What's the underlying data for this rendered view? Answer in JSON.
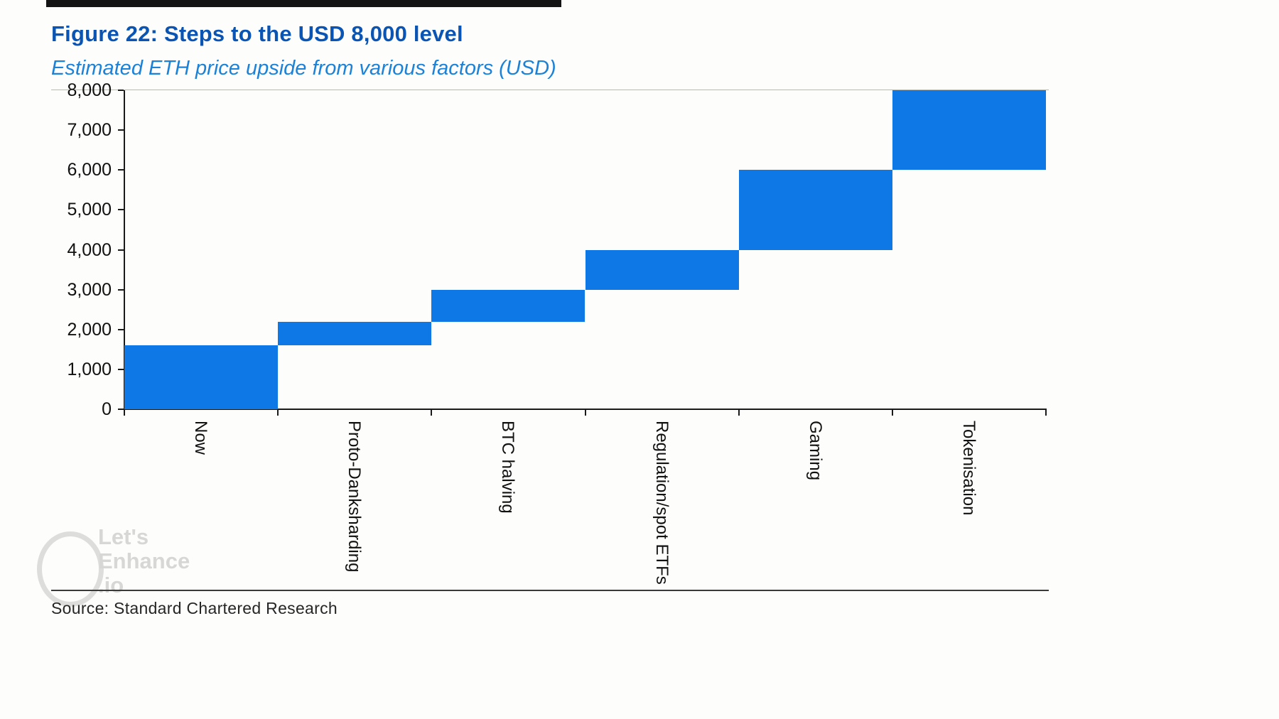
{
  "figure": {
    "title": "Figure 22: Steps to the USD 8,000 level",
    "subtitle": "Estimated ETH price upside from various factors (USD)",
    "source": "Source: Standard Chartered Research"
  },
  "watermark": {
    "lines": [
      "Let's",
      "Enhance",
      ".io"
    ]
  },
  "colors": {
    "bar": "#0e79e6",
    "title": "#0a55b4",
    "subtitle": "#1b82d8",
    "axis": "#1a1a1a",
    "watermark": "#d7d7d5"
  },
  "chart_data": {
    "type": "bar",
    "subtype": "waterfall",
    "title": "Steps to the USD 8,000 level",
    "subtitle": "Estimated ETH price upside from various factors (USD)",
    "categories": [
      "Now",
      "Proto-Danksharding",
      "BTC halving",
      "Regulation/spot ETFs",
      "Gaming",
      "Tokenisation"
    ],
    "segments": [
      {
        "label": "Now",
        "start": 0,
        "end": 1600
      },
      {
        "label": "Proto-Danksharding",
        "start": 1600,
        "end": 2200
      },
      {
        "label": "BTC halving",
        "start": 2200,
        "end": 3000
      },
      {
        "label": "Regulation/spot ETFs",
        "start": 3000,
        "end": 4000
      },
      {
        "label": "Gaming",
        "start": 4000,
        "end": 6000
      },
      {
        "label": "Tokenisation",
        "start": 6000,
        "end": 8000
      }
    ],
    "xlabel": "",
    "ylabel": "",
    "ylim": [
      0,
      8000
    ],
    "ytick_interval": 1000,
    "ytick_labels": [
      "0",
      "1,000",
      "2,000",
      "3,000",
      "4,000",
      "5,000",
      "6,000",
      "7,000",
      "8,000"
    ],
    "grid": false,
    "legend": false,
    "bar_color": "#0e79e6"
  }
}
